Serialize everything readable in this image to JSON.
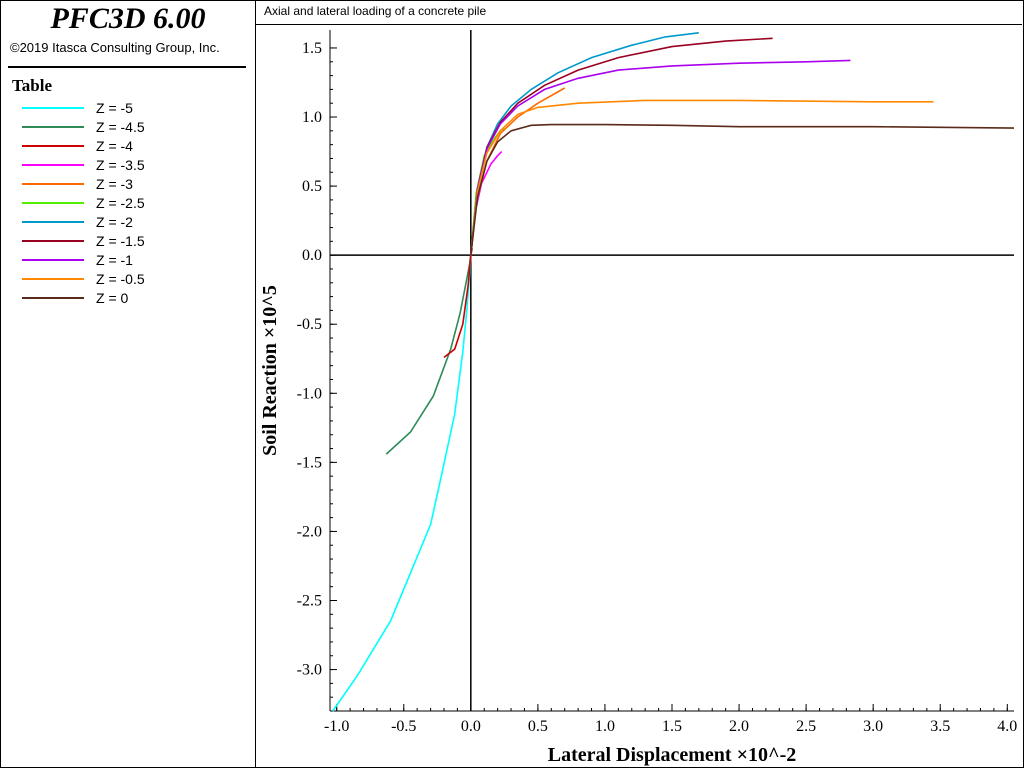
{
  "app": {
    "title": "PFC3D 6.00",
    "copyright": "©2019 Itasca Consulting Group, Inc."
  },
  "legend": {
    "title": "Table"
  },
  "chart_data": {
    "type": "line",
    "title": "Axial and lateral loading of a concrete pile",
    "xlabel": "Lateral Displacement ×10^-2",
    "ylabel": "Soil Reaction ×10^5",
    "xlim": [
      -1.05,
      4.05
    ],
    "ylim": [
      -3.3,
      1.63
    ],
    "xticks": [
      "-1.0",
      "-0.5",
      "0.0",
      "0.5",
      "1.0",
      "1.5",
      "2.0",
      "2.5",
      "3.0",
      "3.5",
      "4.0"
    ],
    "yticks": [
      "1.5",
      "1.0",
      "0.5",
      "0.0",
      "-0.5",
      "-1.0",
      "-1.5",
      "-2.0",
      "-2.5",
      "-3.0"
    ],
    "grid": false,
    "series": [
      {
        "name": "Z = -5",
        "color": "#00ffff",
        "x": [
          -1.03,
          -0.85,
          -0.6,
          -0.45,
          -0.3,
          -0.22,
          -0.12,
          -0.06,
          -0.03,
          -0.01,
          0
        ],
        "y": [
          -3.3,
          -3.05,
          -2.65,
          -2.3,
          -1.95,
          -1.6,
          -1.15,
          -0.7,
          -0.4,
          -0.15,
          0
        ]
      },
      {
        "name": "Z = -4.5",
        "color": "#2e8b57",
        "x": [
          -0.63,
          -0.45,
          -0.28,
          -0.15,
          -0.08,
          -0.04,
          -0.01,
          0
        ],
        "y": [
          -1.44,
          -1.28,
          -1.02,
          -0.68,
          -0.42,
          -0.22,
          -0.07,
          0
        ]
      },
      {
        "name": "Z = -4",
        "color": "#cc0000",
        "x": [
          -0.2,
          -0.12,
          -0.06,
          -0.02,
          0,
          0.01
        ],
        "y": [
          -0.74,
          -0.68,
          -0.5,
          -0.22,
          0,
          0.05
        ]
      },
      {
        "name": "Z = -3.5",
        "color": "#ff00ff",
        "x": [
          0,
          0.03,
          0.08,
          0.15,
          0.2,
          0.23
        ],
        "y": [
          0,
          0.3,
          0.52,
          0.66,
          0.72,
          0.75
        ]
      },
      {
        "name": "Z = -3",
        "color": "#ff6a00",
        "x": [
          0,
          0.04,
          0.12,
          0.22,
          0.35,
          0.5,
          0.7
        ],
        "y": [
          0,
          0.38,
          0.68,
          0.88,
          1.0,
          1.1,
          1.21
        ]
      },
      {
        "name": "Z = -2.5",
        "color": "#55ee00",
        "x": [
          0,
          0.04,
          0.1,
          0.18,
          0.22,
          0.25
        ],
        "y": [
          0,
          0.45,
          0.72,
          0.85,
          0.9,
          0.92
        ]
      },
      {
        "name": "Z = -2",
        "color": "#0099cc",
        "x": [
          0,
          0.05,
          0.12,
          0.2,
          0.3,
          0.45,
          0.65,
          0.9,
          1.2,
          1.45,
          1.7
        ],
        "y": [
          0,
          0.48,
          0.78,
          0.95,
          1.08,
          1.2,
          1.32,
          1.43,
          1.52,
          1.58,
          1.61
        ]
      },
      {
        "name": "Z = -1.5",
        "color": "#990022",
        "x": [
          0,
          0.05,
          0.12,
          0.22,
          0.35,
          0.55,
          0.8,
          1.1,
          1.5,
          1.9,
          2.25
        ],
        "y": [
          0,
          0.48,
          0.78,
          0.96,
          1.1,
          1.23,
          1.34,
          1.43,
          1.51,
          1.55,
          1.57
        ]
      },
      {
        "name": "Z = -1",
        "color": "#aa00ee",
        "x": [
          0,
          0.05,
          0.12,
          0.22,
          0.35,
          0.55,
          0.8,
          1.1,
          1.5,
          2.0,
          2.5,
          2.83
        ],
        "y": [
          0,
          0.48,
          0.77,
          0.95,
          1.08,
          1.2,
          1.28,
          1.34,
          1.37,
          1.39,
          1.4,
          1.41
        ]
      },
      {
        "name": "Z = -0.5",
        "color": "#ff8800",
        "x": [
          0,
          0.05,
          0.12,
          0.22,
          0.35,
          0.5,
          0.8,
          1.3,
          2.0,
          3.0,
          3.45
        ],
        "y": [
          0,
          0.46,
          0.74,
          0.9,
          1.02,
          1.07,
          1.1,
          1.12,
          1.12,
          1.11,
          1.11
        ]
      },
      {
        "name": "Z = 0",
        "color": "#5a2a1a",
        "x": [
          0,
          0.05,
          0.12,
          0.2,
          0.3,
          0.45,
          0.6,
          1.0,
          1.5,
          2.0,
          3.0,
          4.05
        ],
        "y": [
          0,
          0.42,
          0.68,
          0.82,
          0.9,
          0.94,
          0.945,
          0.945,
          0.94,
          0.93,
          0.93,
          0.92
        ]
      }
    ]
  }
}
